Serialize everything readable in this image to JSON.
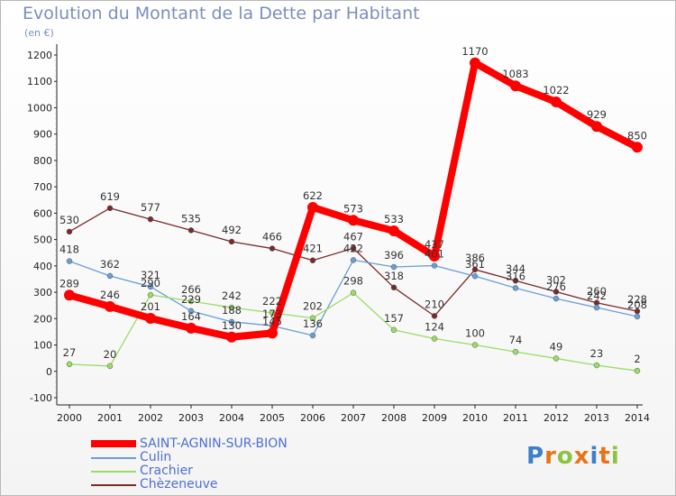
{
  "title": "Evolution du Montant de la Dette par Habitant",
  "unit": "(en €)",
  "logo_text": "Proxiti",
  "chart_data": {
    "type": "line",
    "title": "Evolution du Montant de la Dette par Habitant",
    "ylabel": "(en €)",
    "xlabel": "",
    "ylim": [
      -100,
      1200
    ],
    "yticks": [
      -100,
      0,
      100,
      200,
      300,
      400,
      500,
      600,
      700,
      800,
      900,
      1000,
      1100,
      1200
    ],
    "x": [
      "2000",
      "2001",
      "2002",
      "2003",
      "2004",
      "2005",
      "2006",
      "2007",
      "2008",
      "2009",
      "2010",
      "2011",
      "2012",
      "2013",
      "2014"
    ],
    "grid": false,
    "legend_position": "bottom-left",
    "series": [
      {
        "name": "SAINT-AGNIN-SUR-BION",
        "color": "#ff0000",
        "highlight": true,
        "values": [
          289,
          246,
          201,
          164,
          130,
          145,
          622,
          573,
          533,
          437,
          1170,
          1083,
          1022,
          929,
          850
        ]
      },
      {
        "name": "Culin",
        "color": "#6a9fd6",
        "values": [
          418,
          362,
          321,
          229,
          188,
          173,
          136,
          422,
          396,
          401,
          361,
          316,
          276,
          242,
          208
        ]
      },
      {
        "name": "Crachier",
        "color": "#99dd66",
        "values": [
          27,
          20,
          290,
          266,
          242,
          222,
          202,
          298,
          157,
          124,
          100,
          74,
          49,
          23,
          2
        ]
      },
      {
        "name": "Chèzeneuve",
        "color": "#7a2a2a",
        "values": [
          530,
          619,
          577,
          535,
          492,
          466,
          421,
          467,
          318,
          210,
          386,
          344,
          302,
          260,
          228
        ]
      }
    ]
  }
}
